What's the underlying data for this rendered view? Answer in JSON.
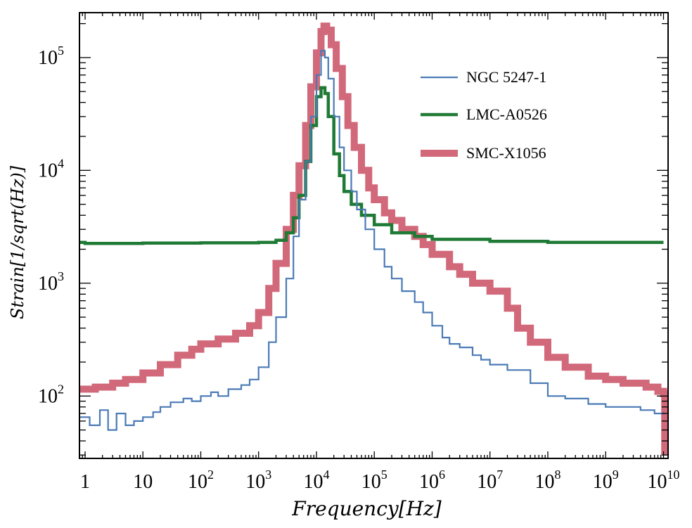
{
  "chart_data": {
    "type": "line",
    "title": "",
    "xlabel": "Frequency[Hz]",
    "ylabel": "Strain[1/sqrt(Hz)]",
    "x_scale": "log",
    "y_scale": "log",
    "xlim": [
      0.8,
      12000000000.0
    ],
    "ylim": [
      28,
      250000
    ],
    "grid": false,
    "legend_position": "top-right",
    "x_ticks": [
      {
        "value": 1,
        "base": "1",
        "exp": ""
      },
      {
        "value": 10,
        "base": "10",
        "exp": ""
      },
      {
        "value": 100,
        "base": "10",
        "exp": "2"
      },
      {
        "value": 1000,
        "base": "10",
        "exp": "3"
      },
      {
        "value": 10000,
        "base": "10",
        "exp": "4"
      },
      {
        "value": 100000,
        "base": "10",
        "exp": "5"
      },
      {
        "value": 1000000,
        "base": "10",
        "exp": "6"
      },
      {
        "value": 10000000,
        "base": "10",
        "exp": "7"
      },
      {
        "value": 100000000,
        "base": "10",
        "exp": "8"
      },
      {
        "value": 1000000000,
        "base": "10",
        "exp": "9"
      },
      {
        "value": 10000000000,
        "base": "10",
        "exp": "10"
      }
    ],
    "y_ticks": [
      {
        "value": 100,
        "base": "10",
        "exp": "2"
      },
      {
        "value": 1000,
        "base": "10",
        "exp": "3"
      },
      {
        "value": 10000,
        "base": "10",
        "exp": "4"
      },
      {
        "value": 100000,
        "base": "10",
        "exp": "5"
      }
    ],
    "series": [
      {
        "name": "NGC 5247-1",
        "color": "#4a7ab5",
        "points": [
          [
            0.8,
            65
          ],
          [
            1.2,
            55
          ],
          [
            1.8,
            75
          ],
          [
            2.5,
            50
          ],
          [
            3.5,
            70
          ],
          [
            5,
            55
          ],
          [
            7,
            60
          ],
          [
            10,
            65
          ],
          [
            15,
            72
          ],
          [
            20,
            80
          ],
          [
            30,
            88
          ],
          [
            50,
            95
          ],
          [
            70,
            90
          ],
          [
            100,
            100
          ],
          [
            150,
            108
          ],
          [
            200,
            100
          ],
          [
            300,
            115
          ],
          [
            500,
            125
          ],
          [
            700,
            140
          ],
          [
            1000,
            180
          ],
          [
            1500,
            300
          ],
          [
            2000,
            500
          ],
          [
            3000,
            1100
          ],
          [
            4000,
            2600
          ],
          [
            5000,
            5500
          ],
          [
            6500,
            12000
          ],
          [
            8000,
            30000
          ],
          [
            10000,
            70000
          ],
          [
            12000,
            115000
          ],
          [
            14000,
            100000
          ],
          [
            16000,
            65000
          ],
          [
            20000,
            30000
          ],
          [
            25000,
            16000
          ],
          [
            30000,
            10000
          ],
          [
            40000,
            6500
          ],
          [
            50000,
            4500
          ],
          [
            70000,
            3000
          ],
          [
            100000,
            2000
          ],
          [
            150000,
            1400
          ],
          [
            200000,
            1100
          ],
          [
            300000,
            850
          ],
          [
            500000,
            680
          ],
          [
            700000,
            550
          ],
          [
            1000000,
            420
          ],
          [
            1500000,
            330
          ],
          [
            2000000,
            290
          ],
          [
            3000000,
            270
          ],
          [
            5000000,
            230
          ],
          [
            7000000,
            210
          ],
          [
            10000000,
            190
          ],
          [
            20000000,
            170
          ],
          [
            50000000,
            130
          ],
          [
            100000000,
            100
          ],
          [
            200000000,
            95
          ],
          [
            500000000,
            85
          ],
          [
            1000000000,
            80
          ],
          [
            2000000000,
            80
          ],
          [
            4000000000,
            75
          ],
          [
            7000000000,
            70
          ],
          [
            10000000000,
            72
          ]
        ]
      },
      {
        "name": "LMC-A0526",
        "color": "#1f7a35",
        "points": [
          [
            0.8,
            2300
          ],
          [
            1,
            2250
          ],
          [
            10,
            2270
          ],
          [
            100,
            2280
          ],
          [
            1000,
            2300
          ],
          [
            2000,
            2400
          ],
          [
            3000,
            2800
          ],
          [
            4000,
            3800
          ],
          [
            5000,
            6000
          ],
          [
            6500,
            12000
          ],
          [
            8000,
            25000
          ],
          [
            10000,
            45000
          ],
          [
            12000,
            54000
          ],
          [
            14000,
            48000
          ],
          [
            16000,
            30000
          ],
          [
            20000,
            14000
          ],
          [
            25000,
            9000
          ],
          [
            30000,
            6500
          ],
          [
            40000,
            5000
          ],
          [
            60000,
            4000
          ],
          [
            100000,
            3300
          ],
          [
            200000,
            2800
          ],
          [
            500000,
            2600
          ],
          [
            1000000,
            2450
          ],
          [
            10000000,
            2350
          ],
          [
            100000000,
            2300
          ],
          [
            1000000000,
            2300
          ],
          [
            10000000000,
            2300
          ]
        ]
      },
      {
        "name": "SMC-X1056",
        "color": "#d2697a",
        "points": [
          [
            0.8,
            115
          ],
          [
            1.5,
            120
          ],
          [
            3,
            130
          ],
          [
            5,
            140
          ],
          [
            10,
            160
          ],
          [
            20,
            190
          ],
          [
            40,
            230
          ],
          [
            70,
            260
          ],
          [
            100,
            290
          ],
          [
            200,
            320
          ],
          [
            400,
            360
          ],
          [
            700,
            420
          ],
          [
            1000,
            550
          ],
          [
            1500,
            900
          ],
          [
            2000,
            1500
          ],
          [
            3000,
            3000
          ],
          [
            4000,
            6000
          ],
          [
            5000,
            11000
          ],
          [
            6500,
            25000
          ],
          [
            8000,
            55000
          ],
          [
            10000,
            110000
          ],
          [
            12000,
            170000
          ],
          [
            13500,
            190000
          ],
          [
            15000,
            175000
          ],
          [
            18000,
            130000
          ],
          [
            22000,
            80000
          ],
          [
            28000,
            45000
          ],
          [
            35000,
            25000
          ],
          [
            45000,
            16000
          ],
          [
            60000,
            10000
          ],
          [
            80000,
            7000
          ],
          [
            100000,
            5500
          ],
          [
            150000,
            4200
          ],
          [
            200000,
            3600
          ],
          [
            300000,
            3000
          ],
          [
            500000,
            2600
          ],
          [
            700000,
            2200
          ],
          [
            1000000,
            1800
          ],
          [
            2000000,
            1400
          ],
          [
            3000000,
            1200
          ],
          [
            5000000,
            1000
          ],
          [
            10000000,
            850
          ],
          [
            20000000,
            600
          ],
          [
            30000000,
            400
          ],
          [
            50000000,
            300
          ],
          [
            100000000,
            220
          ],
          [
            200000000,
            180
          ],
          [
            500000000,
            150
          ],
          [
            1000000000,
            140
          ],
          [
            2000000000,
            130
          ],
          [
            5000000000,
            120
          ],
          [
            8000000000,
            110
          ],
          [
            10000000000,
            105
          ],
          [
            10500000000,
            30
          ]
        ]
      }
    ]
  }
}
